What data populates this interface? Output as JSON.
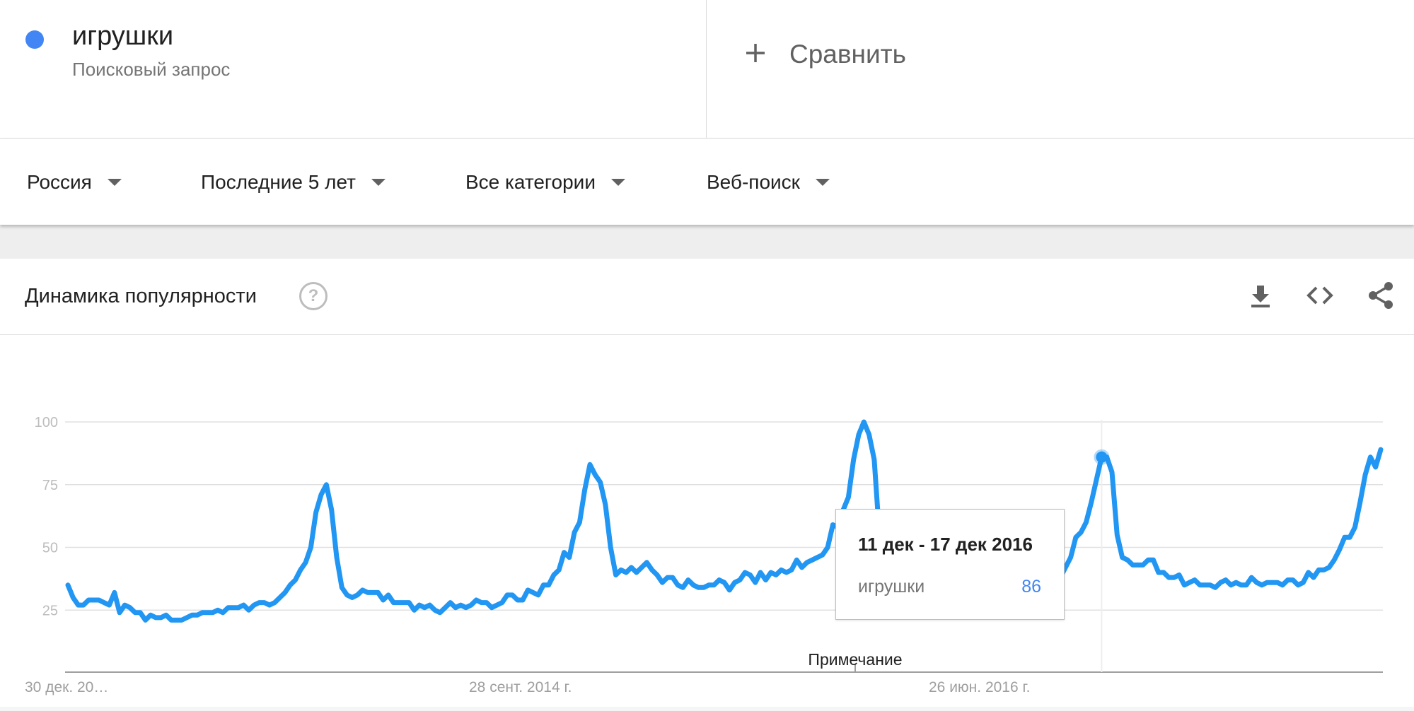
{
  "term": {
    "name": "игрушки",
    "subtitle": "Поисковый запрос",
    "color": "#4285f4"
  },
  "compare": {
    "label": "Сравнить",
    "icon": "plus-icon"
  },
  "filters": {
    "region": "Россия",
    "period": "Последние 5 лет",
    "category": "Все категории",
    "search_type": "Веб-поиск"
  },
  "card": {
    "title": "Динамика популярности",
    "help_icon": "help-circle-icon",
    "actions": [
      "download-icon",
      "embed-code-icon",
      "share-icon"
    ]
  },
  "tooltip": {
    "date": "11 дек - 17 дек 2016",
    "term": "игрушки",
    "value": "86"
  },
  "chart_data": {
    "type": "line",
    "title": "",
    "xlabel": "",
    "ylabel": "",
    "ylim": [
      0,
      100
    ],
    "y_ticks": [
      "25",
      "50",
      "75",
      "100"
    ],
    "x_tick_labels": [
      "30 дек. 20…",
      "28 сент. 2014 г.",
      "26 июн. 2016 г."
    ],
    "annotation": "Примечание",
    "grid": true,
    "line_color": "#2196f3",
    "series": [
      {
        "name": "игрушки",
        "values": [
          35,
          30,
          27,
          27,
          29,
          29,
          29,
          28,
          27,
          32,
          24,
          27,
          26,
          24,
          24,
          21,
          23,
          22,
          22,
          23,
          21,
          21,
          21,
          22,
          23,
          23,
          24,
          24,
          24,
          25,
          24,
          26,
          26,
          26,
          27,
          25,
          27,
          28,
          28,
          27,
          28,
          30,
          32,
          35,
          37,
          41,
          44,
          50,
          64,
          71,
          75,
          65,
          46,
          34,
          31,
          30,
          31,
          33,
          32,
          32,
          32,
          29,
          31,
          28,
          28,
          28,
          28,
          25,
          27,
          26,
          27,
          25,
          24,
          26,
          28,
          26,
          27,
          26,
          27,
          29,
          28,
          28,
          26,
          27,
          28,
          31,
          31,
          29,
          29,
          33,
          32,
          31,
          35,
          35,
          39,
          41,
          48,
          46,
          56,
          60,
          73,
          83,
          79,
          76,
          67,
          50,
          39,
          41,
          40,
          42,
          40,
          42,
          44,
          41,
          39,
          36,
          38,
          38,
          35,
          34,
          37,
          35,
          34,
          34,
          35,
          35,
          37,
          36,
          33,
          36,
          37,
          40,
          39,
          36,
          40,
          37,
          40,
          39,
          41,
          40,
          41,
          45,
          42,
          44,
          45,
          46,
          47,
          50,
          59,
          58,
          65,
          70,
          85,
          95,
          100,
          95,
          85,
          55,
          50,
          47,
          46,
          44,
          46,
          45,
          43,
          42,
          42,
          41,
          40,
          38,
          37,
          35,
          35,
          35,
          36,
          36,
          35,
          34,
          32,
          33,
          31,
          34,
          32,
          32,
          33,
          34,
          33,
          35,
          36,
          37,
          37,
          39,
          38,
          42,
          46,
          54,
          56,
          60,
          68,
          77,
          86,
          86,
          80,
          55,
          46,
          45,
          43,
          43,
          43,
          45,
          45,
          40,
          40,
          38,
          38,
          39,
          35,
          36,
          37,
          35,
          35,
          35,
          34,
          36,
          37,
          35,
          36,
          35,
          35,
          38,
          36,
          35,
          36,
          36,
          36,
          35,
          37,
          37,
          35,
          36,
          40,
          38,
          41,
          41,
          42,
          45,
          49,
          54,
          54,
          58,
          68,
          79,
          86,
          82,
          89
        ]
      }
    ]
  }
}
